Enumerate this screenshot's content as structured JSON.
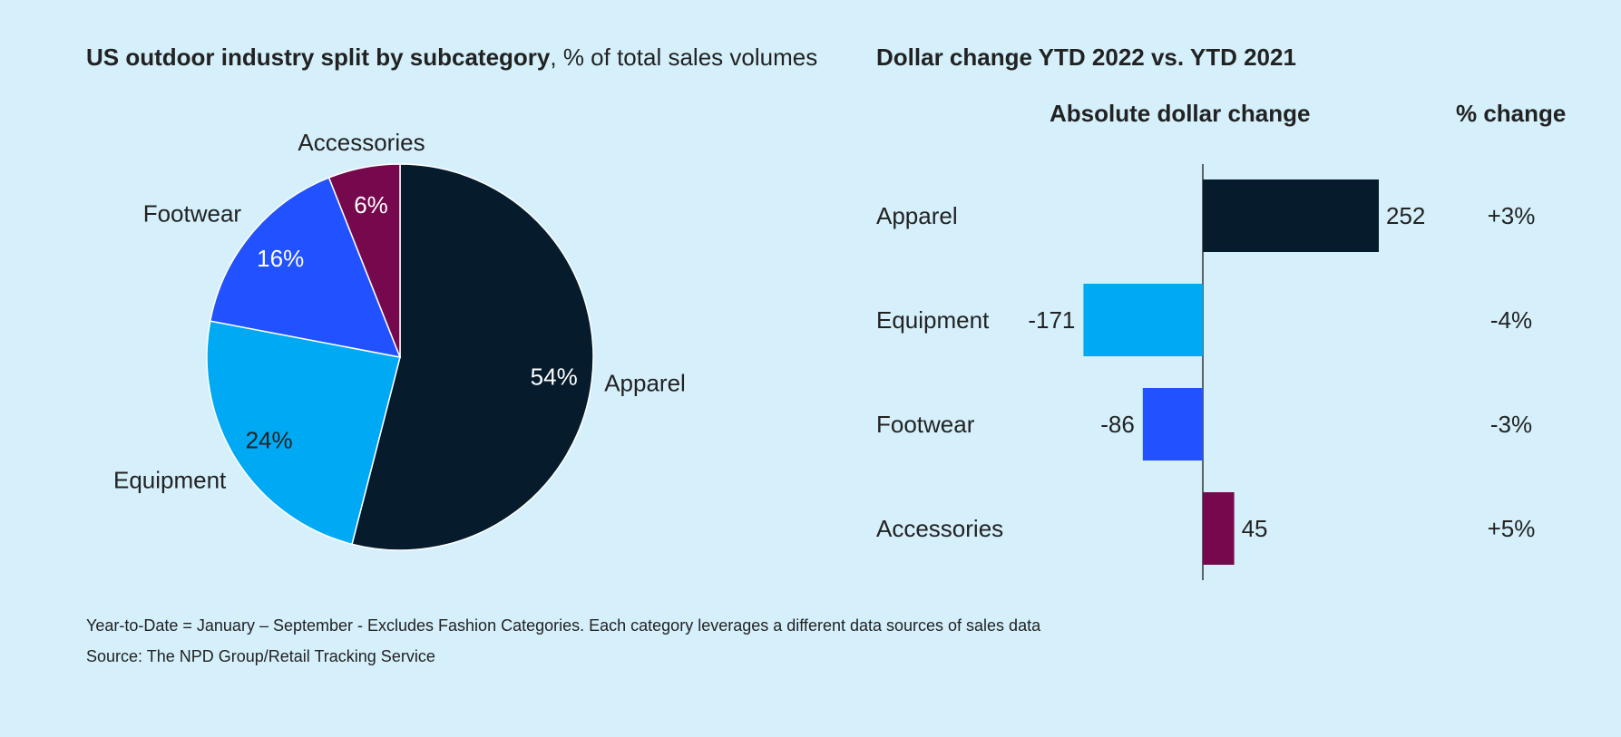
{
  "pie_title_bold": "US outdoor industry split by subcategory",
  "pie_title_rest": ", % of total sales volumes",
  "bar_title": "Dollar change YTD 2022 vs. YTD 2021",
  "abs_header": "Absolute dollar change",
  "pct_header": "% change",
  "footnote": "Year-to-Date = January – September - Excludes Fashion Categories. Each category leverages a different data sources of sales data",
  "source": "Source: The NPD Group/Retail Tracking Service",
  "colors": {
    "background": "#d5f0fb",
    "apparel": "#061b2b",
    "equipment": "#00a9f4",
    "footwear": "#2251ff",
    "accessories": "#76094e",
    "text": "#222222"
  },
  "chart_data": [
    {
      "type": "pie",
      "title": "US outdoor industry split by subcategory, % of total sales volumes",
      "slices": [
        {
          "label": "Apparel",
          "value": 54,
          "value_label": "54%",
          "color": "#061b2b"
        },
        {
          "label": "Equipment",
          "value": 24,
          "value_label": "24%",
          "color": "#00a9f4"
        },
        {
          "label": "Footwear",
          "value": 16,
          "value_label": "16%",
          "color": "#2251ff"
        },
        {
          "label": "Accessories",
          "value": 6,
          "value_label": "6%",
          "color": "#76094e"
        }
      ]
    },
    {
      "type": "bar",
      "orientation": "horizontal",
      "title": "Dollar change YTD 2022 vs. YTD 2021",
      "categories": [
        "Apparel",
        "Equipment",
        "Footwear",
        "Accessories"
      ],
      "values": [
        252,
        -171,
        -86,
        45
      ],
      "value_labels": [
        "252",
        "-171",
        "-86",
        "45"
      ],
      "pct_change": [
        "+3%",
        "-4%",
        "-3%",
        "+5%"
      ],
      "colors": [
        "#061b2b",
        "#00a9f4",
        "#2251ff",
        "#76094e"
      ],
      "xlim": [
        -171,
        252
      ]
    }
  ]
}
